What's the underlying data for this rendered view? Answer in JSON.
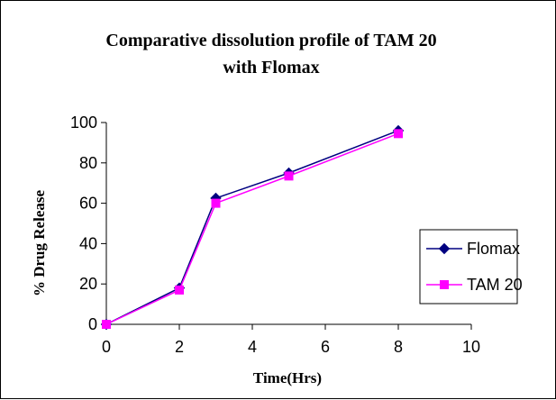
{
  "chart_data": {
    "type": "line",
    "title_lines": [
      "Comparative dissolution profile of TAM 20",
      "with Flomax"
    ],
    "xlabel": "Time(Hrs)",
    "ylabel": "% Drug Release",
    "xlim": [
      0,
      10
    ],
    "ylim": [
      0,
      100
    ],
    "x_ticks": [
      0,
      2,
      4,
      6,
      8,
      10
    ],
    "y_ticks": [
      0,
      20,
      40,
      60,
      80,
      100
    ],
    "grid": false,
    "legend_position": "right",
    "series": [
      {
        "name": "Flomax",
        "color": "#000080",
        "marker": "diamond",
        "x": [
          0,
          2,
          3,
          5,
          8
        ],
        "y": [
          0,
          18,
          62.5,
          75,
          96
        ]
      },
      {
        "name": "TAM 20",
        "color": "#ff00ff",
        "marker": "square",
        "x": [
          0,
          2,
          3,
          5,
          8
        ],
        "y": [
          0,
          17,
          60,
          73.5,
          94.5
        ]
      }
    ]
  }
}
